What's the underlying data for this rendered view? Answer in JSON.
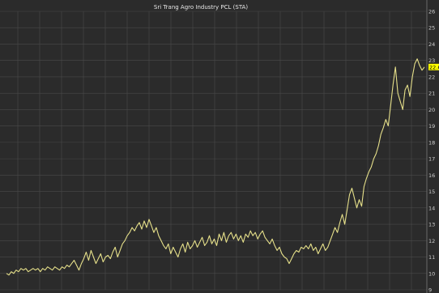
{
  "chart_data": {
    "type": "line",
    "title": "Sri Trang Agro Industry PCL (STA)",
    "xlabel": "",
    "ylabel": "",
    "ylim": [
      9,
      26
    ],
    "y_ticks": [
      9,
      10,
      11,
      12,
      13,
      14,
      15,
      16,
      17,
      18,
      19,
      20,
      21,
      22,
      23,
      24,
      25,
      26
    ],
    "grid": true,
    "legend": "none",
    "last_value_label": "22.6",
    "colors": {
      "background": "#2b2b2b",
      "grid": "#4a4a4a",
      "line": "#e6e08a",
      "axis_text": "#cfcfcf",
      "last_value_bg": "#ffff00",
      "last_value_text": "#000000"
    },
    "series": [
      {
        "values": [
          10.0,
          9.9,
          10.1,
          10.0,
          10.2,
          10.1,
          10.3,
          10.2,
          10.3,
          10.1,
          10.2,
          10.3,
          10.2,
          10.3,
          10.1,
          10.3,
          10.2,
          10.4,
          10.3,
          10.2,
          10.4,
          10.3,
          10.2,
          10.4,
          10.3,
          10.5,
          10.4,
          10.6,
          10.8,
          10.5,
          10.2,
          10.6,
          10.9,
          11.3,
          10.8,
          11.4,
          11.0,
          10.6,
          10.9,
          11.2,
          10.7,
          11.0,
          11.1,
          10.9,
          11.3,
          11.6,
          11.0,
          11.4,
          11.8,
          12.0,
          12.3,
          12.5,
          12.8,
          12.6,
          12.9,
          13.1,
          12.7,
          13.2,
          12.8,
          13.3,
          12.9,
          12.5,
          12.8,
          12.3,
          12.0,
          11.7,
          11.5,
          11.8,
          11.2,
          11.6,
          11.3,
          11.0,
          11.5,
          11.8,
          11.3,
          11.9,
          11.5,
          11.7,
          12.0,
          11.6,
          11.9,
          12.2,
          11.7,
          11.9,
          12.3,
          11.8,
          12.1,
          11.7,
          12.4,
          12.0,
          12.5,
          11.9,
          12.3,
          12.5,
          12.1,
          12.4,
          12.0,
          12.3,
          11.9,
          12.4,
          12.2,
          12.6,
          12.3,
          12.5,
          12.1,
          12.4,
          12.6,
          12.2,
          12.0,
          11.8,
          12.1,
          11.7,
          11.4,
          11.6,
          11.2,
          11.0,
          10.9,
          10.6,
          10.9,
          11.2,
          11.4,
          11.3,
          11.6,
          11.5,
          11.7,
          11.5,
          11.8,
          11.4,
          11.6,
          11.2,
          11.5,
          11.8,
          11.4,
          11.6,
          12.0,
          12.4,
          12.8,
          12.5,
          13.1,
          13.6,
          13.0,
          13.9,
          14.8,
          15.2,
          14.6,
          14.0,
          14.5,
          14.1,
          15.3,
          15.8,
          16.2,
          16.5,
          17.0,
          17.3,
          17.8,
          18.5,
          18.9,
          19.4,
          19.0,
          20.2,
          21.5,
          22.6,
          21.0,
          20.5,
          20.0,
          21.2,
          21.5,
          20.8,
          22.0,
          22.8,
          23.1,
          22.7,
          22.4,
          22.6
        ]
      }
    ]
  }
}
